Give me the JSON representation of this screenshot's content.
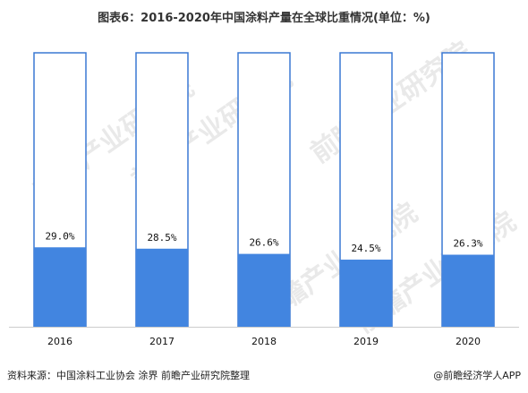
{
  "title": "图表6：2016-2020年中国涂料产量在全球比重情况(单位：%)",
  "source": "资料来源：中国涂料工业协会 涂界 前瞻产业研究院整理",
  "brand": "@前瞻经济学人APP",
  "watermark": "前瞻产业研究院",
  "colors": {
    "fill": "#4285e0",
    "outline": "#3a78d4",
    "axis": "#cccccc"
  },
  "chart_data": {
    "type": "bar",
    "stacked_percent": true,
    "categories": [
      "2016",
      "2017",
      "2018",
      "2019",
      "2020"
    ],
    "values": [
      29.0,
      28.5,
      26.6,
      24.5,
      26.3
    ],
    "data_labels": [
      "29.0%",
      "28.5%",
      "26.6%",
      "24.5%",
      "26.3%"
    ],
    "ylim": [
      0,
      100
    ],
    "grid": false,
    "legend": "none"
  }
}
